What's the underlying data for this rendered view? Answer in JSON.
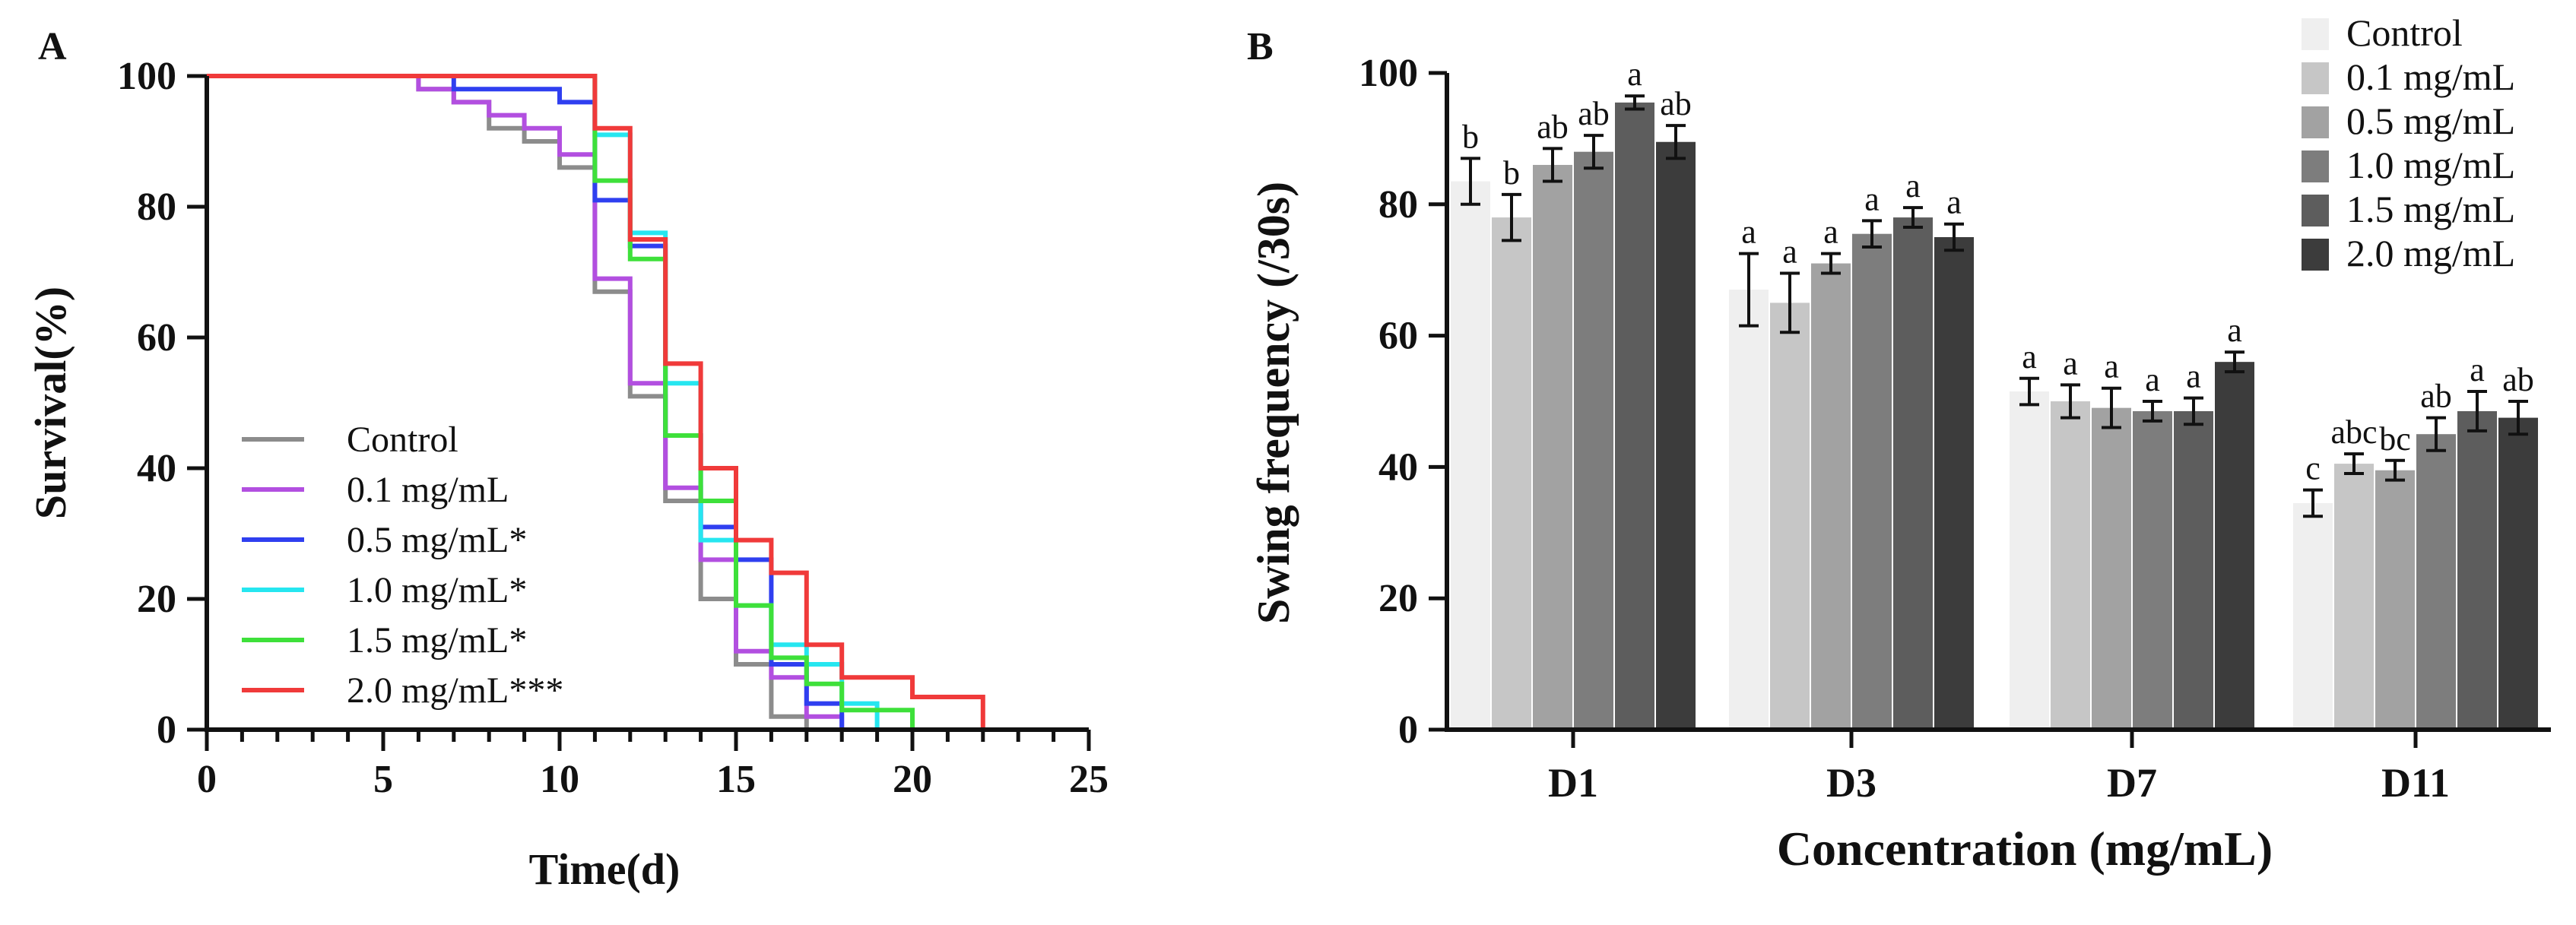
{
  "chart_data": [
    {
      "type": "line",
      "step": true,
      "panel_label": "A",
      "xlabel": "Time(d)",
      "ylabel": "Survival(%)",
      "xlim": [
        0,
        25
      ],
      "ylim": [
        0,
        100
      ],
      "x_ticks": [
        "0",
        "5",
        "10",
        "15",
        "20",
        "25"
      ],
      "y_ticks": [
        "0",
        "20",
        "40",
        "60",
        "80",
        "100"
      ],
      "legend_position": "bottom-left",
      "series": [
        {
          "name": "Control",
          "color": "#8c8c8c",
          "x": [
            0,
            6,
            7,
            8,
            9,
            10,
            11,
            12,
            13,
            14,
            15,
            16,
            17
          ],
          "y": [
            100,
            98,
            96,
            92,
            90,
            86,
            67,
            51,
            35,
            20,
            10,
            2,
            0
          ]
        },
        {
          "name": "0.1 mg/mL",
          "color": "#b24fe0",
          "x": [
            0,
            6,
            7,
            8,
            9,
            10,
            11,
            12,
            13,
            14,
            15,
            16,
            17,
            18
          ],
          "y": [
            100,
            98,
            96,
            94,
            92,
            88,
            69,
            53,
            37,
            26,
            12,
            8,
            2,
            0
          ]
        },
        {
          "name": "0.5 mg/mL*",
          "color": "#2f3ff0",
          "x": [
            0,
            6,
            7,
            10,
            11,
            12,
            13,
            14,
            15,
            16,
            17,
            18
          ],
          "y": [
            100,
            100,
            98,
            96,
            81,
            74,
            45,
            31,
            26,
            10,
            4,
            0
          ]
        },
        {
          "name": "1.0 mg/mL*",
          "color": "#26e6f0",
          "x": [
            0,
            6,
            7,
            11,
            12,
            13,
            14,
            15,
            16,
            17,
            18,
            19
          ],
          "y": [
            100,
            100,
            100,
            91,
            76,
            53,
            29,
            19,
            13,
            10,
            4,
            0
          ]
        },
        {
          "name": "1.5 mg/mL*",
          "color": "#3ee03a",
          "x": [
            0,
            11,
            12,
            13,
            14,
            15,
            16,
            17,
            18,
            20
          ],
          "y": [
            100,
            84,
            72,
            45,
            35,
            19,
            11,
            7,
            3,
            0
          ]
        },
        {
          "name": "2.0 mg/mL***",
          "color": "#f03a3a",
          "x": [
            0,
            11,
            12,
            13,
            14,
            15,
            16,
            17,
            18,
            20,
            22
          ],
          "y": [
            100,
            92,
            75,
            56,
            40,
            29,
            24,
            13,
            8,
            5,
            0
          ]
        }
      ]
    },
    {
      "type": "bar",
      "panel_label": "B",
      "xlabel": "Concentration (mg/mL)",
      "ylabel": "Swing frequency (/30s)",
      "ylim": [
        0,
        100
      ],
      "y_ticks": [
        "0",
        "20",
        "40",
        "60",
        "80",
        "100"
      ],
      "categories": [
        "D1",
        "D3",
        "D7",
        "D11"
      ],
      "legend_position": "top-right",
      "series": [
        {
          "name": "Control",
          "color": "#efefef",
          "values": [
            83.5,
            67,
            51.5,
            34.5
          ],
          "errors": [
            3.5,
            5.5,
            2,
            2
          ],
          "labels": [
            "b",
            "a",
            "a",
            "c"
          ]
        },
        {
          "name": "0.1 mg/mL",
          "color": "#c6c6c6",
          "values": [
            78,
            65,
            50,
            40.5
          ],
          "errors": [
            3.5,
            4.5,
            2.5,
            1.5
          ],
          "labels": [
            "b",
            "a",
            "a",
            "abc"
          ]
        },
        {
          "name": "0.5 mg/mL",
          "color": "#a2a2a2",
          "values": [
            86,
            71,
            49,
            39.5
          ],
          "errors": [
            2.5,
            1.5,
            3,
            1.5
          ],
          "labels": [
            "ab",
            "a",
            "a",
            "bc"
          ]
        },
        {
          "name": "1.0 mg/mL",
          "color": "#7d7d7d",
          "values": [
            88,
            75.5,
            48.5,
            45
          ],
          "errors": [
            2.5,
            2,
            1.5,
            2.5
          ],
          "labels": [
            "ab",
            "a",
            "a",
            "ab"
          ]
        },
        {
          "name": "1.5 mg/mL",
          "color": "#5d5d5d",
          "values": [
            95.5,
            78,
            48.5,
            48.5
          ],
          "errors": [
            1,
            1.5,
            2,
            3
          ],
          "labels": [
            "a",
            "a",
            "a",
            "a"
          ]
        },
        {
          "name": "2.0 mg/mL",
          "color": "#3c3c3c",
          "values": [
            89.5,
            75,
            56,
            47.5
          ],
          "errors": [
            2.5,
            2,
            1.5,
            2.5
          ],
          "labels": [
            "ab",
            "a",
            "a",
            "ab"
          ]
        }
      ]
    }
  ]
}
